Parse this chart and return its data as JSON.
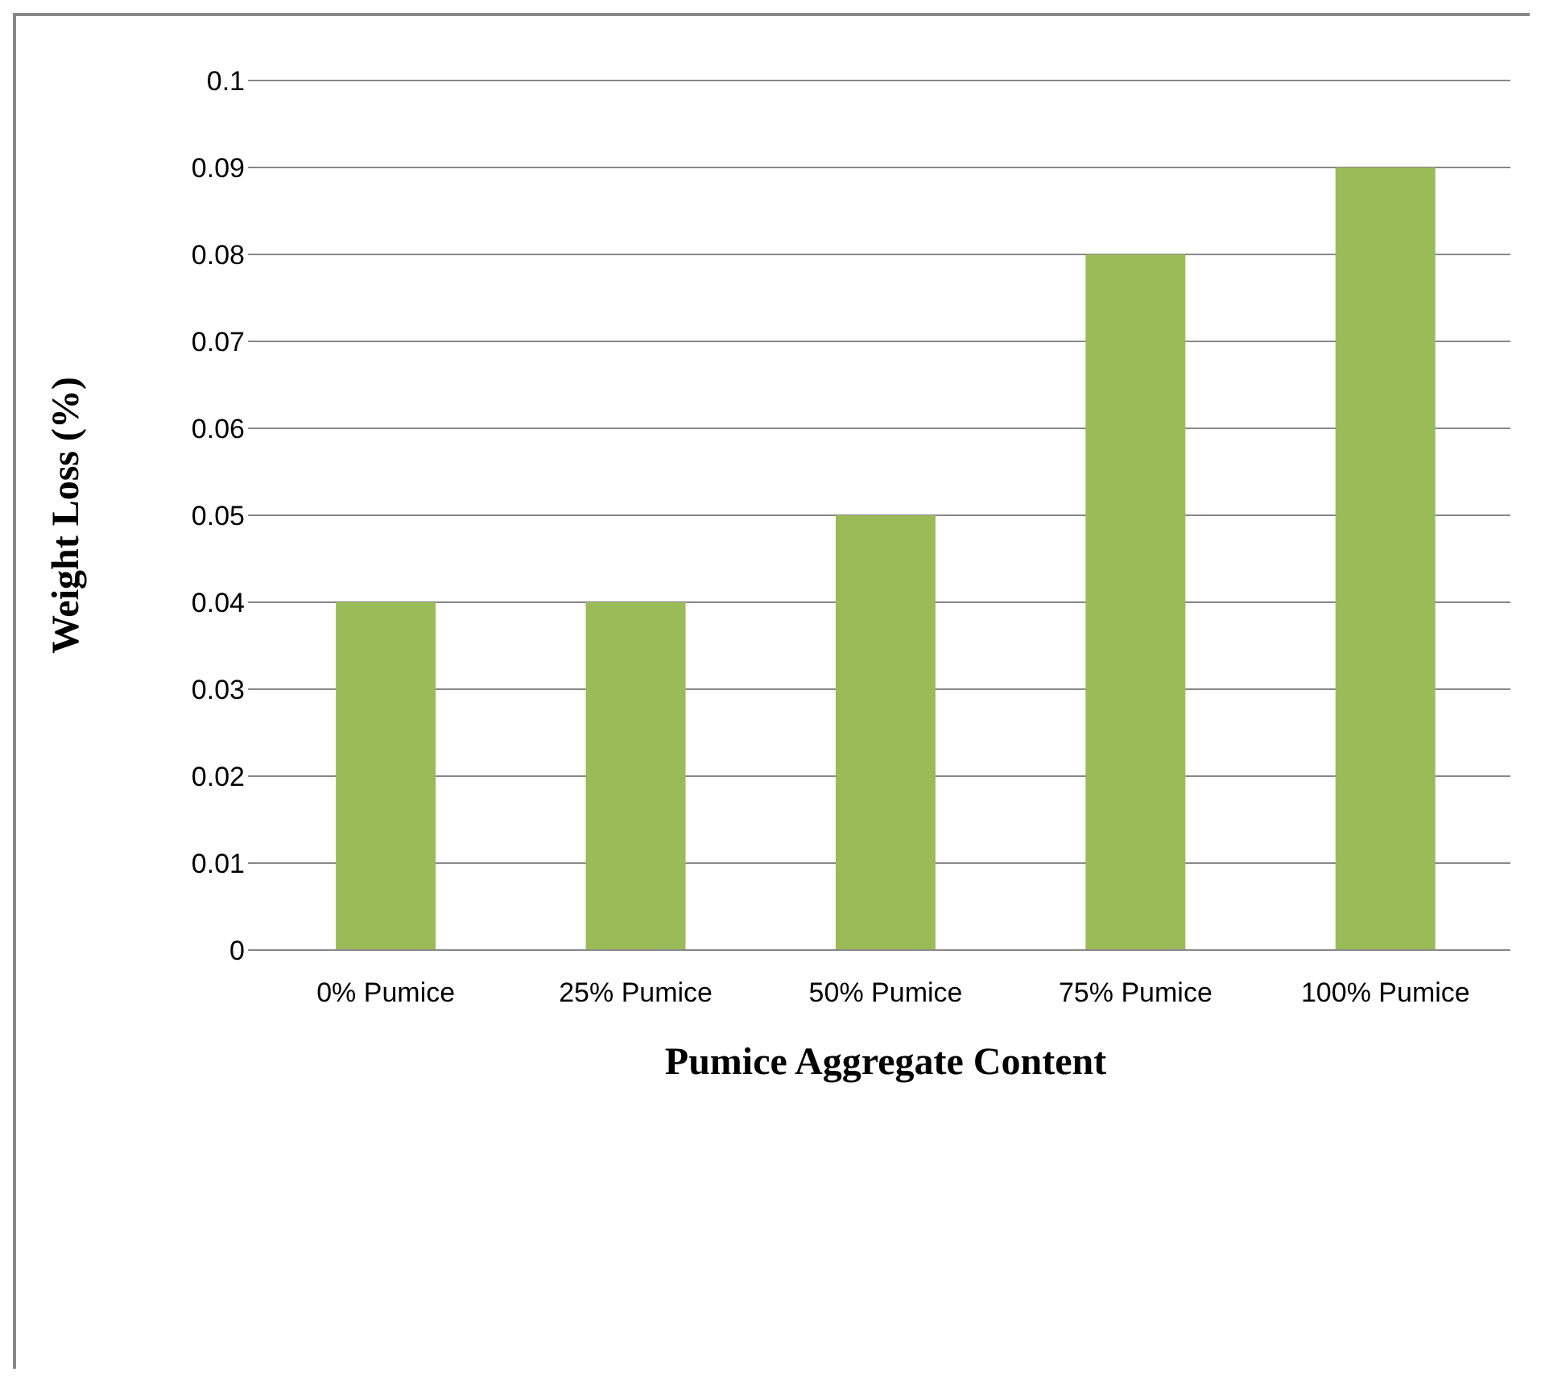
{
  "chart_data": {
    "type": "bar",
    "xlabel": "Pumice Aggregate Content",
    "ylabel": "Weight Loss (%)",
    "categories": [
      "0% Pumice",
      "25% Pumice",
      "50% Pumice",
      "75% Pumice",
      "100% Pumice"
    ],
    "values": [
      0.04,
      0.04,
      0.05,
      0.08,
      0.09
    ],
    "color": "#9bbb59",
    "ylim": [
      0,
      0.1
    ],
    "yticks": [
      0,
      0.01,
      0.02,
      0.03,
      0.04,
      0.05,
      0.06,
      0.07,
      0.08,
      0.09,
      0.1
    ],
    "grid": "y"
  }
}
